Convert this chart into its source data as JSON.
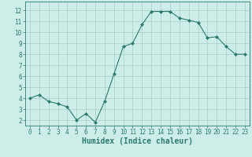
{
  "x": [
    0,
    1,
    2,
    3,
    4,
    5,
    6,
    7,
    8,
    9,
    10,
    11,
    12,
    13,
    14,
    15,
    16,
    17,
    18,
    19,
    20,
    21,
    22,
    23
  ],
  "y": [
    4.0,
    4.3,
    3.7,
    3.5,
    3.2,
    2.0,
    2.6,
    1.8,
    3.7,
    6.2,
    8.7,
    9.0,
    10.7,
    11.9,
    11.9,
    11.9,
    11.3,
    11.1,
    10.9,
    9.5,
    9.6,
    8.7,
    8.0,
    8.0
  ],
  "line_color": "#2d7a6e",
  "marker": "D",
  "marker_size": 2.0,
  "background_color": "#cdeee8",
  "grid_color": "#aaccc6",
  "xlabel": "Humidex (Indice chaleur)",
  "ylim": [
    1.5,
    12.8
  ],
  "xlim": [
    -0.5,
    23.5
  ],
  "yticks": [
    2,
    3,
    4,
    5,
    6,
    7,
    8,
    9,
    10,
    11,
    12
  ],
  "xticks": [
    0,
    1,
    2,
    3,
    4,
    5,
    6,
    7,
    8,
    9,
    10,
    11,
    12,
    13,
    14,
    15,
    16,
    17,
    18,
    19,
    20,
    21,
    22,
    23
  ],
  "tick_label_fontsize": 5.5,
  "xlabel_fontsize": 7.0,
  "tick_color": "#2d7a6e",
  "spine_color": "#2d7a6e",
  "linewidth": 0.8
}
